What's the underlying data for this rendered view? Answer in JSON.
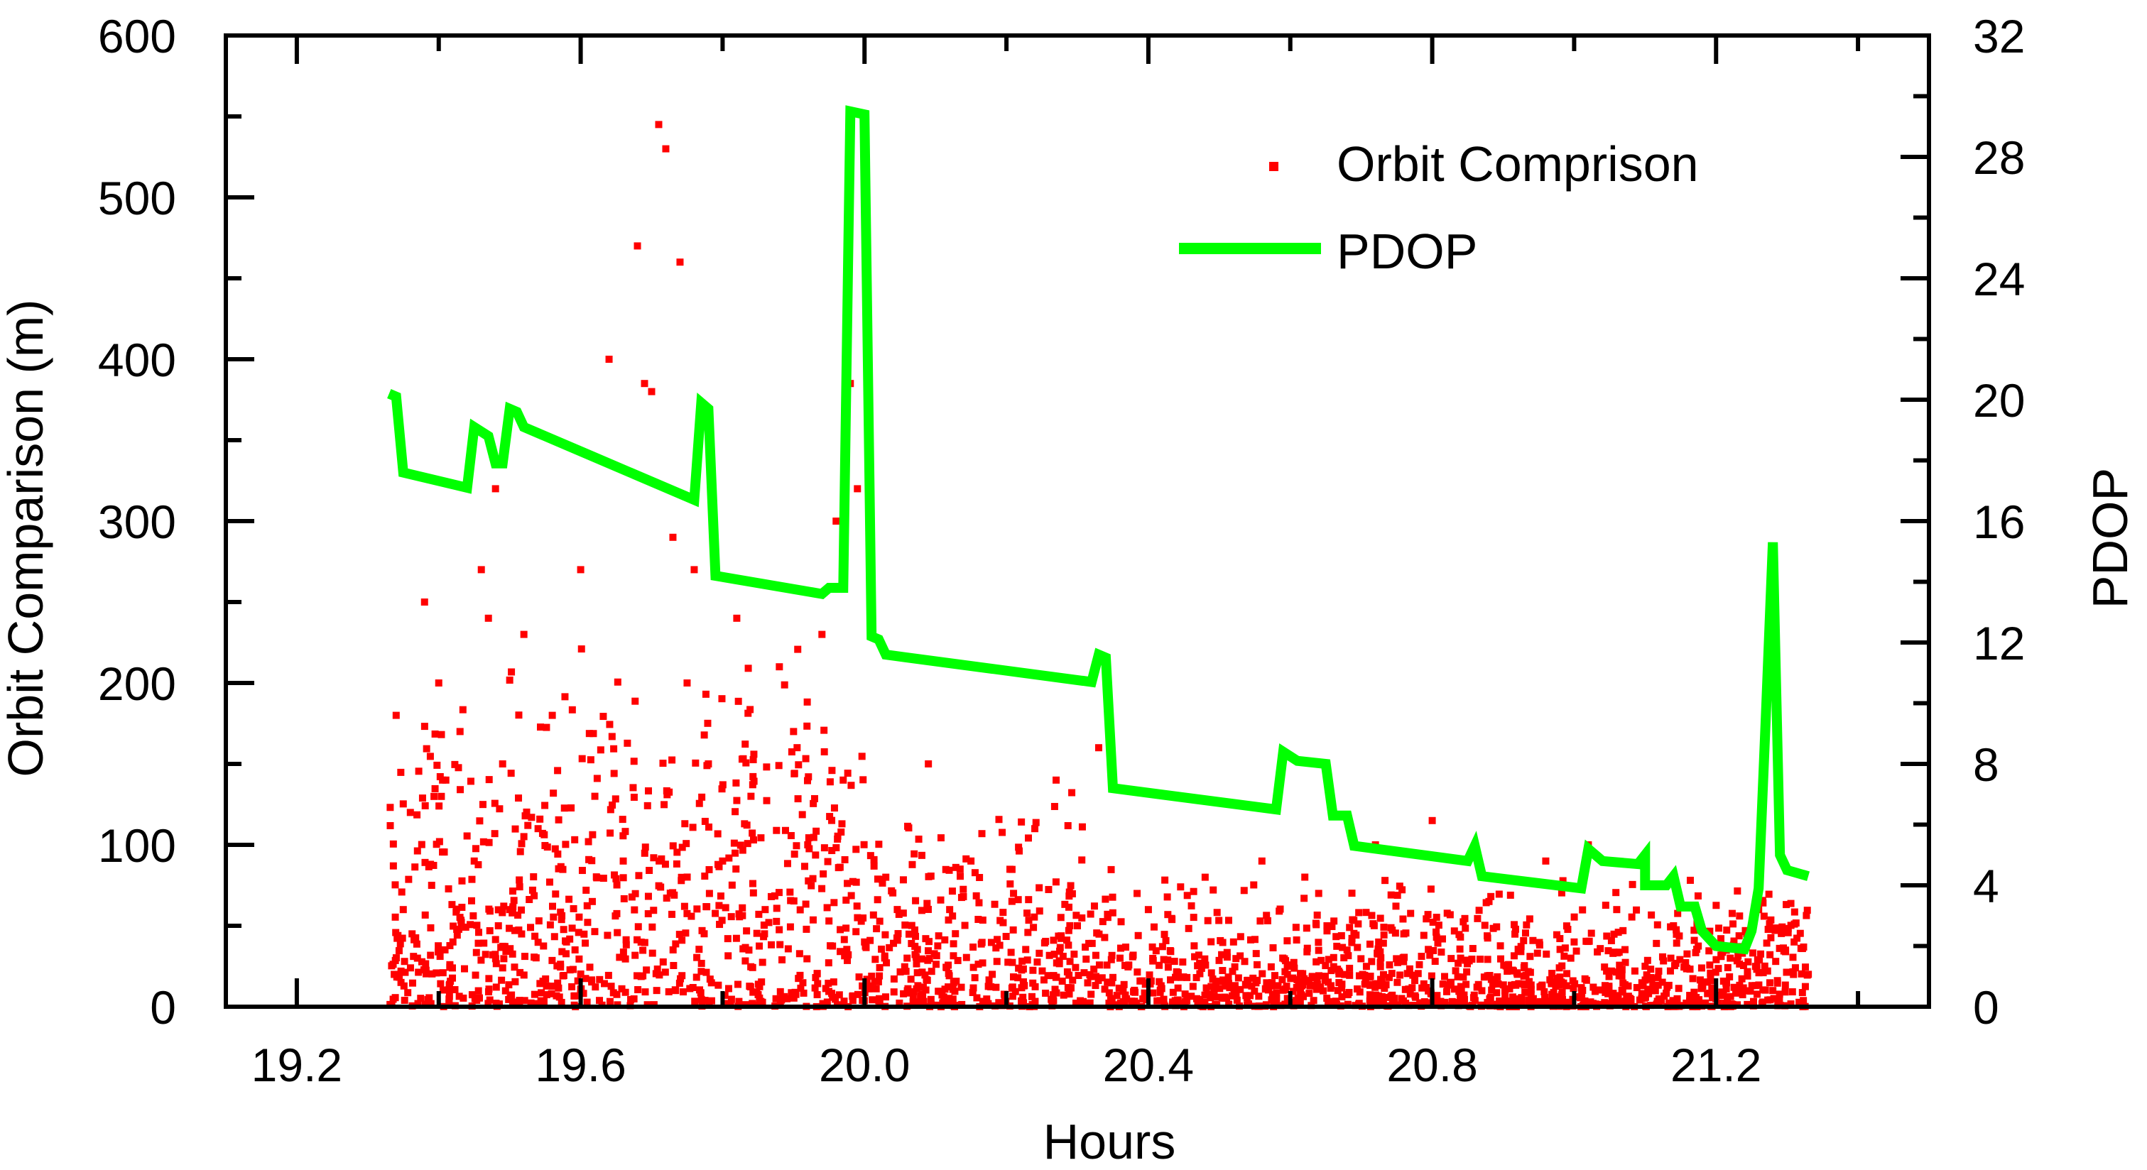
{
  "chart_data": {
    "type": "scatter",
    "title": "",
    "xlabel": "Hours",
    "ylabel": "Orbit Comparison (m)",
    "y2label": "PDOP",
    "xlim": [
      19.1,
      21.5
    ],
    "ylim": [
      0,
      600
    ],
    "y2lim": [
      0,
      32
    ],
    "xticks": [
      "19.2",
      "19.6",
      "20.0",
      "20.4",
      "20.8",
      "21.2"
    ],
    "xtick_values": [
      19.2,
      19.6,
      20.0,
      20.4,
      20.8,
      21.2
    ],
    "yticks": [
      "0",
      "100",
      "200",
      "300",
      "400",
      "500",
      "600"
    ],
    "ytick_values": [
      0,
      100,
      200,
      300,
      400,
      500,
      600
    ],
    "y2ticks": [
      "0",
      "4",
      "8",
      "12",
      "16",
      "20",
      "24",
      "28",
      "32"
    ],
    "y2tick_values": [
      0,
      4,
      8,
      12,
      16,
      20,
      24,
      28,
      32
    ],
    "grid": false,
    "legend": {
      "placement": "top-right",
      "entries": [
        "Orbit Comprison",
        "PDOP"
      ]
    },
    "colors": {
      "orbit": "#ff0000",
      "pdop": "#00ff00",
      "axis": "#000000"
    },
    "series": [
      {
        "name": "Orbit Comprison",
        "type": "scatter",
        "axis": "left",
        "x_range": [
          19.33,
          21.33
        ],
        "points": [
          [
            19.34,
            180
          ],
          [
            19.35,
            60
          ],
          [
            19.36,
            120
          ],
          [
            19.37,
            30
          ],
          [
            19.38,
            250
          ],
          [
            19.39,
            75
          ],
          [
            19.4,
            200
          ],
          [
            19.41,
            140
          ],
          [
            19.42,
            40
          ],
          [
            19.43,
            170
          ],
          [
            19.45,
            90
          ],
          [
            19.46,
            270
          ],
          [
            19.47,
            240
          ],
          [
            19.48,
            320
          ],
          [
            19.49,
            150
          ],
          [
            19.5,
            60
          ],
          [
            19.52,
            230
          ],
          [
            19.54,
            110
          ],
          [
            19.56,
            180
          ],
          [
            19.58,
            40
          ],
          [
            19.6,
            270
          ],
          [
            19.62,
            130
          ],
          [
            19.64,
            400
          ],
          [
            19.66,
            90
          ],
          [
            19.68,
            470
          ],
          [
            19.69,
            385
          ],
          [
            19.7,
            380
          ],
          [
            19.71,
            545
          ],
          [
            19.72,
            530
          ],
          [
            19.73,
            290
          ],
          [
            19.74,
            460
          ],
          [
            19.75,
            200
          ],
          [
            19.76,
            270
          ],
          [
            19.78,
            150
          ],
          [
            19.8,
            90
          ],
          [
            19.82,
            240
          ],
          [
            19.84,
            130
          ],
          [
            19.86,
            60
          ],
          [
            19.88,
            210
          ],
          [
            19.9,
            170
          ],
          [
            19.92,
            100
          ],
          [
            19.94,
            230
          ],
          [
            19.96,
            300
          ],
          [
            19.97,
            140
          ],
          [
            19.98,
            385
          ],
          [
            19.99,
            320
          ],
          [
            20.0,
            40
          ],
          [
            20.03,
            80
          ],
          [
            20.06,
            30
          ],
          [
            20.09,
            150
          ],
          [
            20.12,
            60
          ],
          [
            20.15,
            90
          ],
          [
            20.18,
            20
          ],
          [
            20.21,
            70
          ],
          [
            20.24,
            110
          ],
          [
            20.27,
            140
          ],
          [
            20.3,
            50
          ],
          [
            20.32,
            200
          ],
          [
            20.33,
            160
          ],
          [
            20.36,
            30
          ],
          [
            20.4,
            60
          ],
          [
            20.44,
            20
          ],
          [
            20.48,
            80
          ],
          [
            20.52,
            40
          ],
          [
            20.56,
            90
          ],
          [
            20.6,
            25
          ],
          [
            20.64,
            70
          ],
          [
            20.68,
            35
          ],
          [
            20.72,
            100
          ],
          [
            20.76,
            45
          ],
          [
            20.8,
            115
          ],
          [
            20.84,
            30
          ],
          [
            20.88,
            65
          ],
          [
            20.92,
            20
          ],
          [
            20.96,
            90
          ],
          [
            21.0,
            40
          ],
          [
            21.02,
            100
          ],
          [
            21.06,
            60
          ],
          [
            21.1,
            25
          ],
          [
            21.14,
            50
          ],
          [
            21.18,
            15
          ],
          [
            21.22,
            30
          ],
          [
            21.26,
            60
          ],
          [
            21.28,
            10
          ],
          [
            21.31,
            40
          ],
          [
            21.33,
            20
          ]
        ]
      },
      {
        "name": "PDOP",
        "type": "line",
        "axis": "right",
        "points": [
          [
            19.33,
            20.2
          ],
          [
            19.34,
            20.1
          ],
          [
            19.35,
            17.6
          ],
          [
            19.44,
            17.1
          ],
          [
            19.45,
            19.1
          ],
          [
            19.47,
            18.8
          ],
          [
            19.48,
            17.9
          ],
          [
            19.49,
            17.9
          ],
          [
            19.5,
            19.7
          ],
          [
            19.51,
            19.6
          ],
          [
            19.52,
            19.1
          ],
          [
            19.76,
            16.7
          ],
          [
            19.77,
            19.9
          ],
          [
            19.78,
            19.7
          ],
          [
            19.79,
            14.2
          ],
          [
            19.94,
            13.6
          ],
          [
            19.95,
            13.8
          ],
          [
            19.97,
            13.8
          ],
          [
            19.98,
            29.5
          ],
          [
            20.0,
            29.4
          ],
          [
            20.01,
            12.2
          ],
          [
            20.02,
            12.1
          ],
          [
            20.03,
            11.6
          ],
          [
            20.32,
            10.7
          ],
          [
            20.33,
            11.6
          ],
          [
            20.34,
            11.5
          ],
          [
            20.35,
            7.2
          ],
          [
            20.58,
            6.5
          ],
          [
            20.59,
            8.4
          ],
          [
            20.61,
            8.1
          ],
          [
            20.65,
            8.0
          ],
          [
            20.66,
            6.3
          ],
          [
            20.68,
            6.3
          ],
          [
            20.69,
            5.3
          ],
          [
            20.85,
            4.8
          ],
          [
            20.86,
            5.3
          ],
          [
            20.87,
            4.3
          ],
          [
            21.01,
            3.9
          ],
          [
            21.02,
            5.2
          ],
          [
            21.04,
            4.8
          ],
          [
            21.09,
            4.7
          ],
          [
            21.1,
            5.0
          ],
          [
            21.1,
            4.0
          ],
          [
            21.13,
            4.0
          ],
          [
            21.14,
            4.3
          ],
          [
            21.15,
            3.3
          ],
          [
            21.17,
            3.3
          ],
          [
            21.18,
            2.5
          ],
          [
            21.2,
            2.0
          ],
          [
            21.24,
            1.9
          ],
          [
            21.25,
            2.5
          ],
          [
            21.26,
            3.9
          ],
          [
            21.27,
            9.5
          ],
          [
            21.28,
            15.3
          ],
          [
            21.29,
            5.0
          ],
          [
            21.3,
            4.5
          ],
          [
            21.33,
            4.3
          ]
        ]
      }
    ]
  }
}
